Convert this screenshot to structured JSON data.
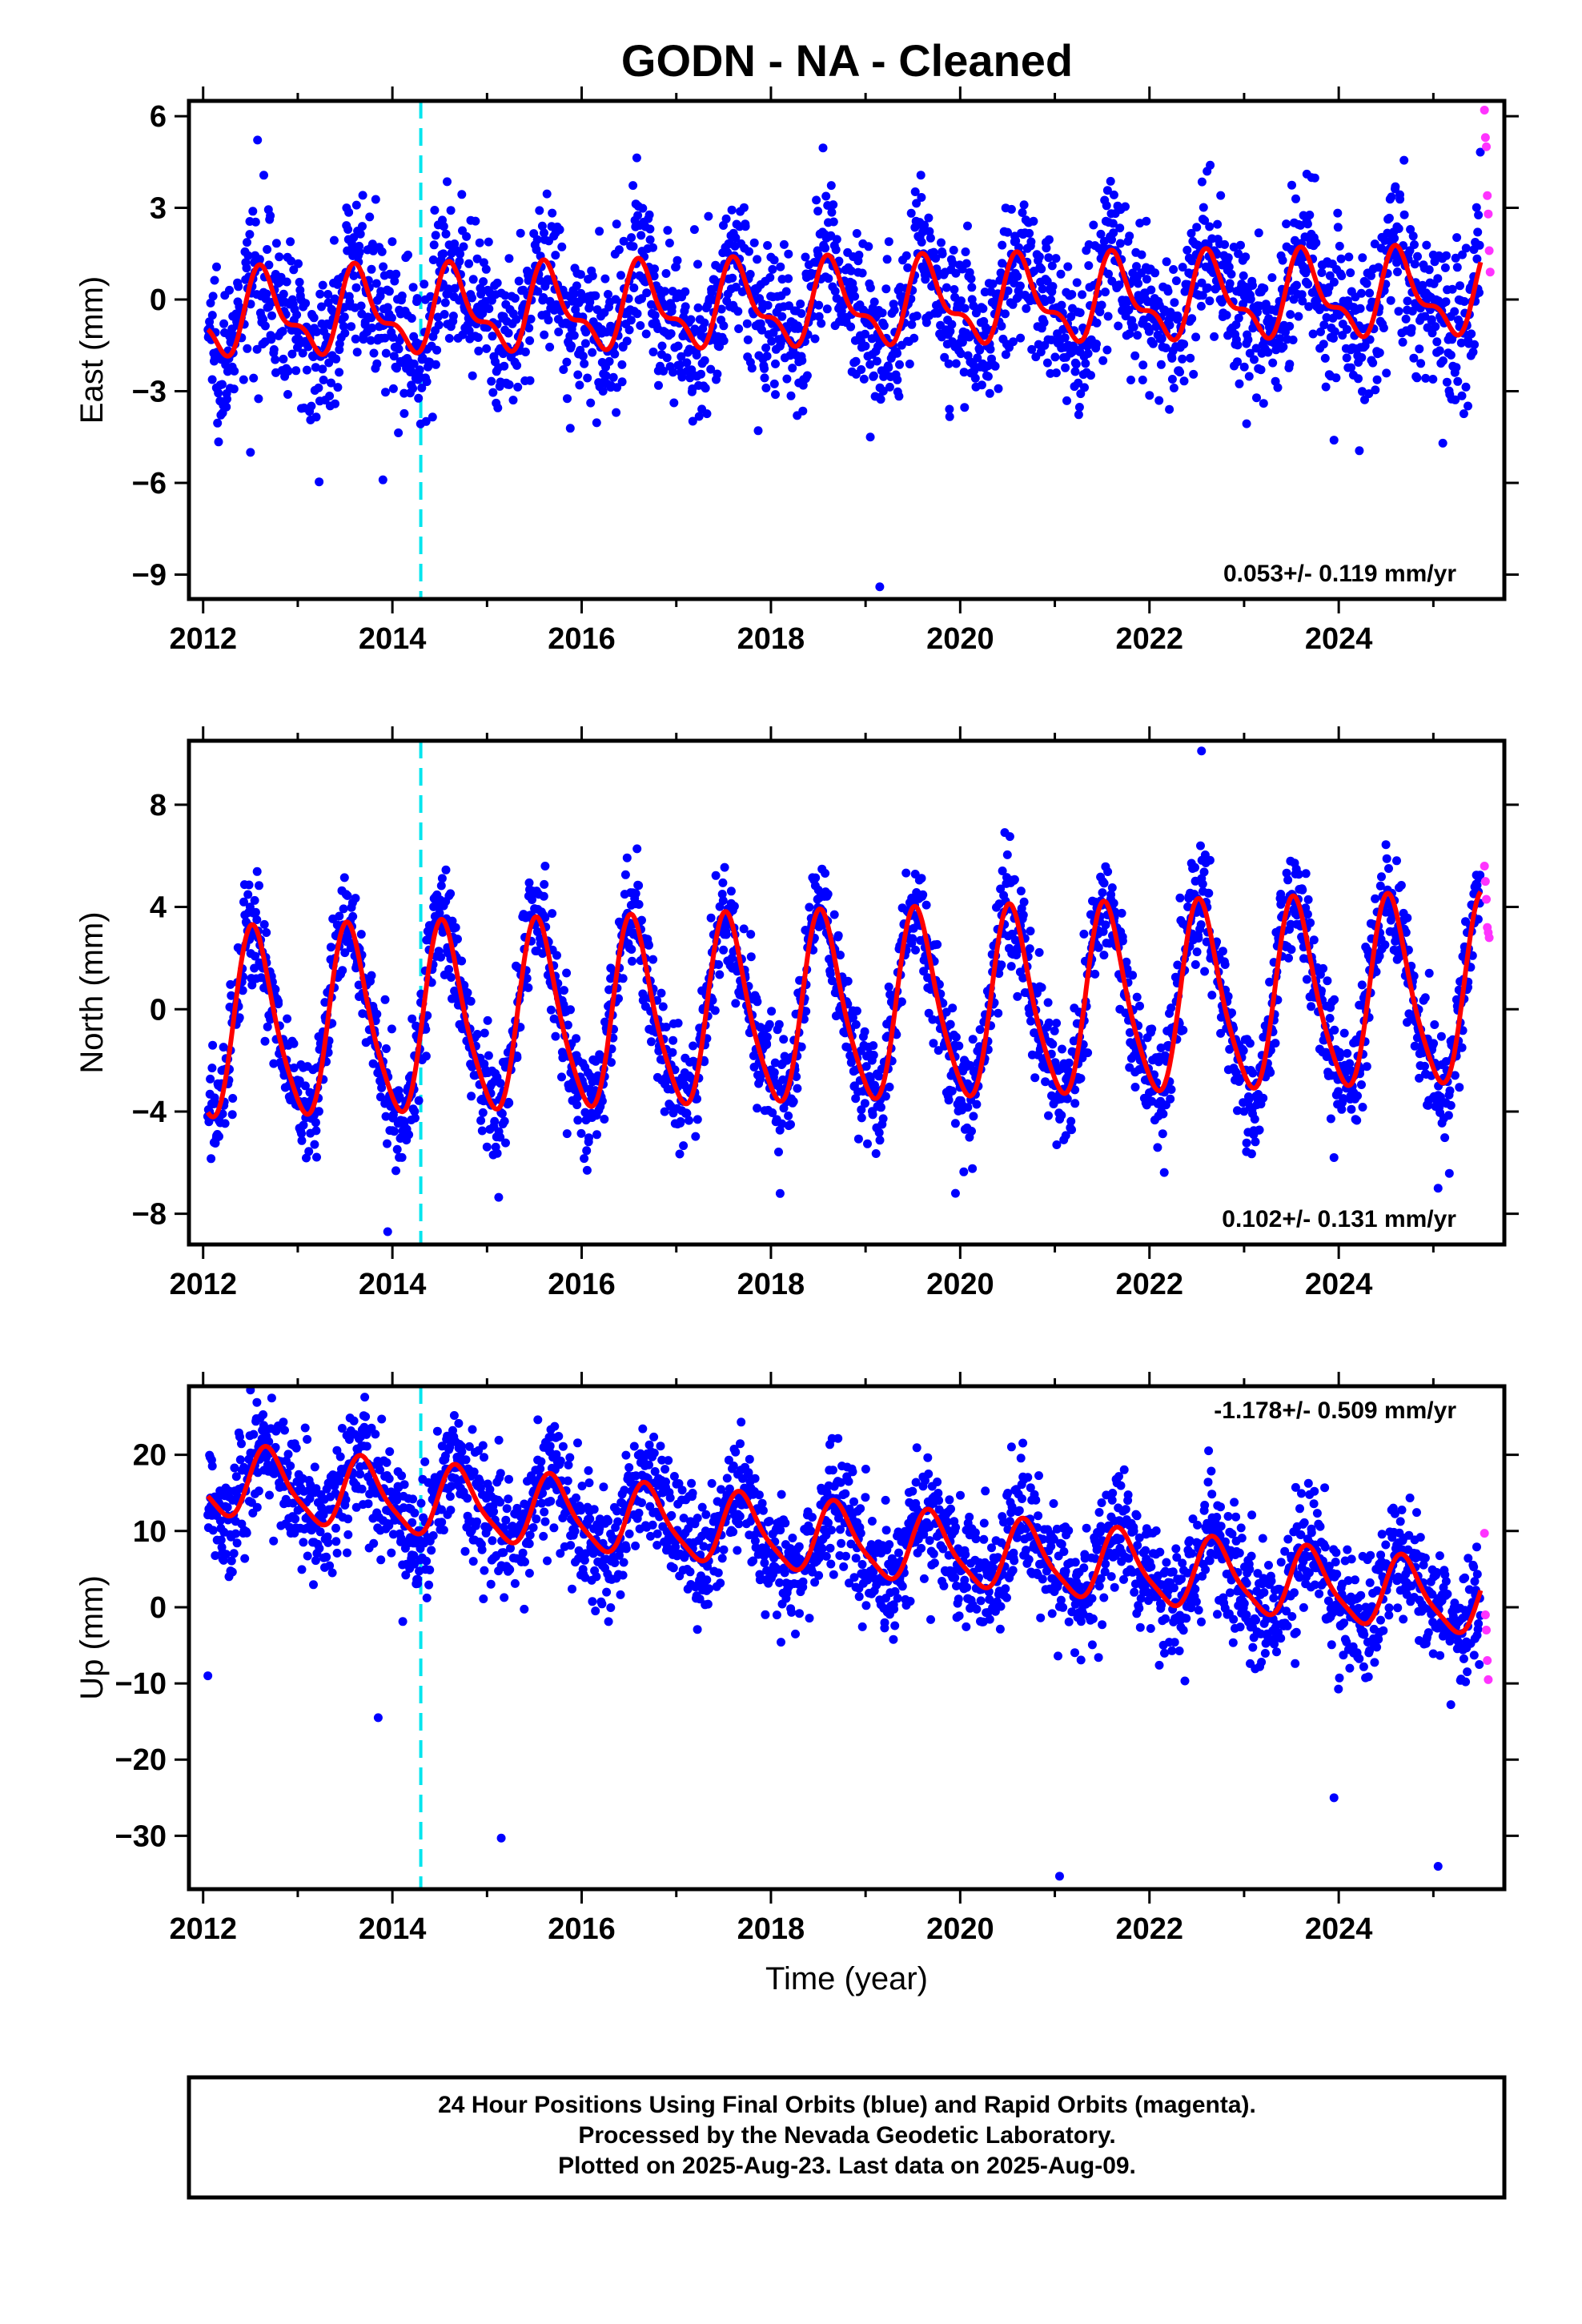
{
  "title": "GODN  - NA - Cleaned",
  "colors": {
    "final_points": "#0000ff",
    "rapid_points": "#ff33ff",
    "model": "#ff0000",
    "event_line": "#00e5ee",
    "frame": "#000000"
  },
  "footer": {
    "line1": "24 Hour Positions Using Final Orbits (blue) and Rapid Orbits (magenta).",
    "line2": "Processed by the Nevada Geodetic Laboratory.",
    "line3": "Plotted on 2025-Aug-23. Last data on 2025-Aug-09."
  },
  "chart_data": [
    {
      "type": "scatter",
      "component": "east",
      "ylabel": "East (mm)",
      "xlabel": "",
      "rate_label": "0.053+/- 0.119 mm/yr",
      "xlim": [
        2011.85,
        2025.75
      ],
      "ylim": [
        -9.8,
        6.5
      ],
      "yticks": [
        -9,
        -6,
        -3,
        0,
        3,
        6
      ],
      "ytick_labels": [
        "−9",
        "−6",
        "−3",
        "0",
        "3",
        "6"
      ],
      "xticks": [
        2012,
        2014,
        2016,
        2018,
        2020,
        2022,
        2024
      ],
      "xtick_labels": [
        "2012",
        "2014",
        "2016",
        "2018",
        "2020",
        "2022",
        "2024"
      ],
      "event_line_x": 2014.3,
      "series": [
        {
          "role": "final_orbits",
          "data_range": [
            2012.05,
            2025.5
          ],
          "annual_amplitude": 1.2,
          "annual_phase_peak": 0.65,
          "semiannual_amplitude": 0.55,
          "trend_per_year": 0.053,
          "mean": -0.2,
          "scatter_sigma": 1.25
        },
        {
          "role": "rapid_orbits",
          "x": [
            2025.54,
            2025.55,
            2025.56,
            2025.57,
            2025.58,
            2025.59,
            2025.6
          ],
          "y": [
            6.2,
            5.3,
            5.0,
            3.4,
            2.8,
            1.6,
            0.9
          ]
        },
        {
          "role": "model_fit",
          "annual_amplitude": 1.2,
          "annual_phase_peak": 0.65,
          "semiannual_amplitude": 0.55,
          "trend_per_year": 0.053,
          "mean": -0.2
        }
      ],
      "outliers": [
        {
          "x": 2013.9,
          "y": -5.9
        },
        {
          "x": 2012.5,
          "y": -5.0
        },
        {
          "x": 2019.15,
          "y": -9.4
        },
        {
          "x": 2023.95,
          "y": -4.6
        },
        {
          "x": 2025.1,
          "y": -4.7
        },
        {
          "x": 2019.05,
          "y": -4.5
        }
      ]
    },
    {
      "type": "scatter",
      "component": "north",
      "ylabel": "North (mm)",
      "xlabel": "",
      "rate_label": "0.102+/- 0.131 mm/yr",
      "xlim": [
        2011.85,
        2025.75
      ],
      "ylim": [
        -9.2,
        10.5
      ],
      "yticks": [
        -8,
        -4,
        0,
        4,
        8
      ],
      "ytick_labels": [
        "−8",
        "−4",
        "0",
        "4",
        "8"
      ],
      "xticks": [
        2012,
        2014,
        2016,
        2018,
        2020,
        2022,
        2024
      ],
      "xtick_labels": [
        "2012",
        "2014",
        "2016",
        "2018",
        "2020",
        "2022",
        "2024"
      ],
      "event_line_x": 2014.3,
      "series": [
        {
          "role": "final_orbits",
          "data_range": [
            2012.05,
            2025.5
          ],
          "annual_amplitude": 3.6,
          "annual_phase_peak": 0.55,
          "semiannual_amplitude": 0.6,
          "trend_per_year": 0.102,
          "mean": -0.1,
          "scatter_sigma": 1.1
        },
        {
          "role": "rapid_orbits",
          "x": [
            2025.54,
            2025.55,
            2025.56,
            2025.57,
            2025.58,
            2025.59
          ],
          "y": [
            5.6,
            5.0,
            4.3,
            3.2,
            3.0,
            2.8
          ]
        },
        {
          "role": "model_fit",
          "annual_amplitude": 3.6,
          "annual_phase_peak": 0.55,
          "semiannual_amplitude": 0.6,
          "trend_per_year": 0.102,
          "mean": -0.1
        }
      ],
      "outliers": [
        {
          "x": 2013.95,
          "y": -8.7
        },
        {
          "x": 2019.95,
          "y": -7.2
        },
        {
          "x": 2025.05,
          "y": -7.0
        },
        {
          "x": 2022.55,
          "y": 10.1
        },
        {
          "x": 2023.95,
          "y": -5.8
        }
      ]
    },
    {
      "type": "scatter",
      "component": "up",
      "ylabel": "Up (mm)",
      "xlabel": "Time (year)",
      "rate_label": "-1.178+/- 0.509 mm/yr",
      "xlim": [
        2011.85,
        2025.75
      ],
      "ylim": [
        -37,
        29
      ],
      "yticks": [
        -30,
        -20,
        -10,
        0,
        10,
        20
      ],
      "ytick_labels": [
        "−30",
        "−20",
        "−10",
        "0",
        "10",
        "20"
      ],
      "xticks": [
        2012,
        2014,
        2016,
        2018,
        2020,
        2022,
        2024
      ],
      "xtick_labels": [
        "2012",
        "2014",
        "2016",
        "2018",
        "2020",
        "2022",
        "2024"
      ],
      "event_line_x": 2014.3,
      "series": [
        {
          "role": "final_orbits",
          "data_range": [
            2012.05,
            2025.5
          ],
          "annual_amplitude": 4.5,
          "annual_phase_peak": 0.7,
          "semiannual_amplitude": 1.0,
          "trend_per_year": -1.178,
          "mean": 9.0,
          "scatter_sigma": 4.0
        },
        {
          "role": "rapid_orbits",
          "x": [
            2025.54,
            2025.55,
            2025.56,
            2025.57,
            2025.58
          ],
          "y": [
            9.7,
            -1.0,
            -3.0,
            -7.0,
            -9.5
          ]
        },
        {
          "role": "model_fit",
          "annual_amplitude": 4.5,
          "annual_phase_peak": 0.7,
          "semiannual_amplitude": 1.0,
          "trend_per_year": -1.178,
          "mean": 9.0
        }
      ],
      "outliers": [
        {
          "x": 2012.5,
          "y": 28.5
        },
        {
          "x": 2013.85,
          "y": -14.5
        },
        {
          "x": 2015.15,
          "y": -30.3
        },
        {
          "x": 2021.05,
          "y": -35.3
        },
        {
          "x": 2025.05,
          "y": -34.0
        },
        {
          "x": 2023.95,
          "y": -25.0
        },
        {
          "x": 2012.05,
          "y": -9.0
        }
      ]
    }
  ]
}
